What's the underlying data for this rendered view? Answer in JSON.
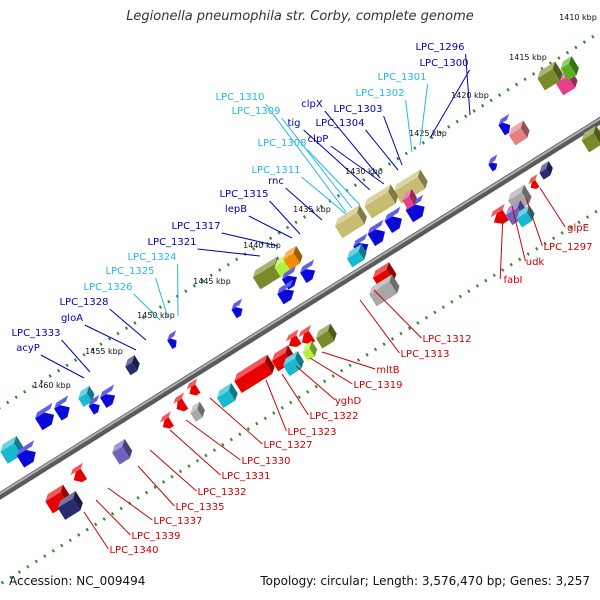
{
  "title": "Legionella pneumophila str. Corby, complete genome",
  "accession": "Accession: NC_009494",
  "topology": "Topology: circular; Length: 3,576,470 bp; Genes: 3,257",
  "colors": {
    "backbone": "#7f7f7f",
    "dots": "#2e8b2e",
    "label_forward": "#0000b0",
    "label_forward_light": "#22b8e6",
    "label_reverse": "#cc0000",
    "tick_text": "#111111"
  },
  "ticks": [
    "1410 kbp",
    "1415 kbp",
    "1420 kbp",
    "1425 kbp",
    "1430 kbp",
    "1435 kbp",
    "1440 kbp",
    "1445 kbp",
    "1450 kbp",
    "1455 kbp",
    "1460 kbp"
  ],
  "labels_forward": [
    "LPC_1296",
    "LPC_1300",
    "LPC_1301",
    "LPC_1302",
    "LPC_1303",
    "LPC_1304",
    "LPC_1308",
    "LPC_1309",
    "LPC_1310",
    "clpX",
    "tig",
    "clpP",
    "LPC_1311",
    "rnc",
    "LPC_1315",
    "lepB",
    "LPC_1317",
    "LPC_1321",
    "LPC_1324",
    "LPC_1325",
    "LPC_1326",
    "LPC_1328",
    "gloA",
    "LPC_1333",
    "acyP"
  ],
  "labels_reverse": [
    "glpE",
    "LPC_1297",
    "udk",
    "fabI",
    "LPC_1312",
    "LPC_1313",
    "mltB",
    "LPC_1319",
    "yghD",
    "LPC_1322",
    "LPC_1323",
    "LPC_1327",
    "LPC_1330",
    "LPC_1331",
    "LPC_1332",
    "LPC_1335",
    "LPC_1337",
    "LPC_1339",
    "LPC_1340"
  ]
}
